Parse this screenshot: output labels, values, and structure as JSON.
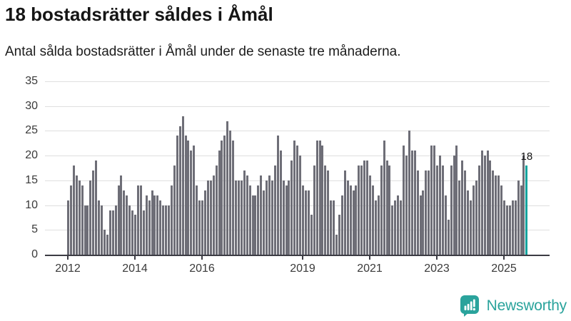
{
  "header": {
    "title": "18 bostadsrätter såldes i Åmål",
    "subtitle": "Antal sålda bostadsrätter i Åmål under de senaste tre månaderna."
  },
  "chart_data": {
    "type": "bar",
    "title": "18 bostadsrätter såldes i Åmål",
    "subtitle": "Antal sålda bostadsrätter i Åmål under de senaste tre månaderna.",
    "xlabel": "",
    "ylabel": "",
    "ylim": [
      0,
      35
    ],
    "y_ticks": [
      0,
      5,
      10,
      15,
      20,
      25,
      30,
      35
    ],
    "grid": true,
    "legend": "none",
    "frequency": "monthly",
    "start_month": "2012-01",
    "end_month": "2025-09",
    "x_ticks": [
      {
        "label": "2012",
        "month_offset": 0
      },
      {
        "label": "2014",
        "month_offset": 24
      },
      {
        "label": "2016",
        "month_offset": 48
      },
      {
        "label": "2019",
        "month_offset": 84
      },
      {
        "label": "2021",
        "month_offset": 108
      },
      {
        "label": "2023",
        "month_offset": 132
      },
      {
        "label": "2025",
        "month_offset": 156
      }
    ],
    "values": [
      11,
      14,
      18,
      16,
      15,
      14,
      10,
      10,
      15,
      17,
      19,
      11,
      10,
      5,
      4,
      9,
      9,
      10,
      14,
      16,
      13,
      12,
      10,
      9,
      8,
      14,
      14,
      9,
      12,
      11,
      13,
      12,
      12,
      11,
      10,
      10,
      10,
      14,
      18,
      24,
      26,
      28,
      24,
      23,
      21,
      22,
      14,
      11,
      11,
      13,
      15,
      15,
      16,
      18,
      21,
      23,
      24,
      27,
      25,
      23,
      15,
      15,
      15,
      17,
      16,
      14,
      12,
      12,
      14,
      16,
      13,
      15,
      16,
      15,
      18,
      24,
      21,
      15,
      14,
      15,
      19,
      23,
      22,
      20,
      14,
      13,
      13,
      8,
      18,
      23,
      23,
      22,
      18,
      17,
      11,
      11,
      4,
      8,
      12,
      17,
      15,
      14,
      13,
      14,
      18,
      18,
      19,
      19,
      16,
      14,
      11,
      12,
      18,
      23,
      19,
      18,
      10,
      11,
      12,
      11,
      22,
      20,
      25,
      21,
      21,
      17,
      12,
      13,
      17,
      17,
      22,
      22,
      18,
      20,
      18,
      12,
      7,
      18,
      20,
      22,
      15,
      19,
      17,
      13,
      11,
      14,
      15,
      18,
      21,
      20,
      21,
      19,
      17,
      16,
      16,
      14,
      11,
      10,
      10,
      11,
      11,
      15,
      14,
      20,
      18
    ],
    "bar_color": "#6e6e77",
    "highlight": {
      "index_from_end": 1,
      "value_label": "18",
      "color": "#0da39d"
    }
  },
  "footer": {
    "brand": "Newsworthy",
    "brand_color": "#2aa39c",
    "logo_icon": "bar-chart-speech-bubble-icon"
  }
}
